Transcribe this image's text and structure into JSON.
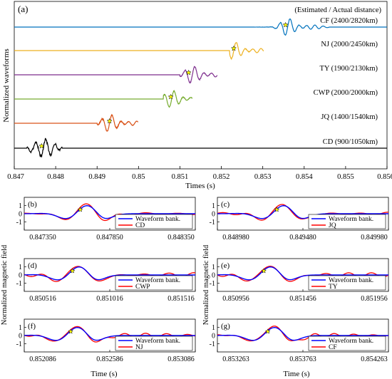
{
  "figure": {
    "panel_a": {
      "label": "(a)",
      "xlabel": "Times (s)",
      "ylabel": "Normalized waveforms",
      "legend_header": "(Estimated / Actual distance)",
      "xticks": [
        "0.847",
        "0.848",
        "0.849",
        "0.85",
        "0.851",
        "0.852",
        "0.853",
        "0.854",
        "0.855",
        "0.856"
      ]
    },
    "small_panels_ylabel": "Normalized magnetic field",
    "small_panels_xlabel": "Time (s)",
    "legend_waveform_bank": "Waveform bank.",
    "colors": {
      "waveform_bank": "#0000ff",
      "observed": "#ff0000",
      "axes": "#000000",
      "star_fill": "#ffff00"
    }
  },
  "chart_data": [
    {
      "type": "line",
      "panel": "(a)",
      "xlim": [
        0.847,
        0.856
      ],
      "xlabel": "Times (s)",
      "ylabel": "Normalized waveforms",
      "grid": false,
      "series": [
        {
          "name": "CF (2400/2820km)",
          "station": "CF",
          "color": "#0072bd",
          "offset": 5,
          "t_arrival": 0.8536,
          "t_start": 0.8524,
          "t_end": 0.8546,
          "t_star": 0.85355
        },
        {
          "name": "NJ (2000/2450km)",
          "station": "NJ",
          "color": "#edb120",
          "offset": 4,
          "t_arrival": 0.8523,
          "t_start": 0.8522,
          "t_end": 0.85302,
          "t_star": 0.8523
        },
        {
          "name": "TY (1900/2130km)",
          "station": "TY",
          "color": "#7e2f8e",
          "offset": 3,
          "t_arrival": 0.8513,
          "t_start": 0.851,
          "t_end": 0.8519,
          "t_star": 0.85121
        },
        {
          "name": "CWP (2000/2000km)",
          "station": "CWP",
          "color": "#77ac30",
          "offset": 2,
          "t_arrival": 0.8508,
          "t_start": 0.8506,
          "t_end": 0.8513,
          "t_star": 0.85078
        },
        {
          "name": "JQ (1400/1540km)",
          "station": "JQ",
          "color": "#d95319",
          "offset": 1,
          "t_arrival": 0.8493,
          "t_start": 0.849,
          "t_end": 0.84999,
          "t_star": 0.8493
        },
        {
          "name": "CD (900/1050km)",
          "station": "CD",
          "color": "#000000",
          "offset": 0,
          "t_arrival": 0.8477,
          "t_start": 0.8473,
          "t_end": 0.84815,
          "t_star": 0.84766
        }
      ]
    },
    {
      "type": "line",
      "panel": "(b)",
      "station": "CD",
      "xticks": [
        "0.847350",
        "0.847850",
        "0.848350"
      ],
      "xlim": [
        0.84735,
        0.84835
      ],
      "yticks": [
        "1",
        "0",
        "-1"
      ],
      "ylim": [
        -2,
        2
      ],
      "t_event": 0.84769,
      "series": [
        {
          "name": "Waveform bank."
        },
        {
          "name": "CD"
        }
      ]
    },
    {
      "type": "line",
      "panel": "(c)",
      "station": "JQ",
      "xticks": [
        "0.848980",
        "0.849480",
        "0.849980"
      ],
      "xlim": [
        0.84898,
        0.84998
      ],
      "yticks": [
        "1",
        "0",
        "-1"
      ],
      "ylim": [
        -2,
        2
      ],
      "t_event": 0.84934,
      "series": [
        {
          "name": "Waveform bank."
        },
        {
          "name": "JQ"
        }
      ]
    },
    {
      "type": "line",
      "panel": "(d)",
      "station": "CWP",
      "xticks": [
        "0.850516",
        "0.851016",
        "0.851516"
      ],
      "xlim": [
        0.850516,
        0.851516
      ],
      "yticks": [
        "1",
        "0",
        "-1"
      ],
      "ylim": [
        -2,
        2
      ],
      "t_event": 0.85081,
      "series": [
        {
          "name": "Waveform bank."
        },
        {
          "name": "CWP"
        }
      ]
    },
    {
      "type": "line",
      "panel": "(e)",
      "station": "TY",
      "xticks": [
        "0.850956",
        "0.851456",
        "0.851956"
      ],
      "xlim": [
        0.850956,
        0.851956
      ],
      "yticks": [
        "1",
        "0",
        "-1"
      ],
      "ylim": [
        -2,
        2
      ],
      "t_event": 0.85124,
      "series": [
        {
          "name": "Waveform bank."
        },
        {
          "name": "TY"
        }
      ]
    },
    {
      "type": "line",
      "panel": "(f)",
      "station": "NJ",
      "xticks": [
        "0.852086",
        "0.852586",
        "0.853086"
      ],
      "xlim": [
        0.852086,
        0.853086
      ],
      "yticks": [
        "1",
        "0",
        "-1"
      ],
      "ylim": [
        -2,
        2
      ],
      "t_event": 0.85237,
      "series": [
        {
          "name": "Waveform bank."
        },
        {
          "name": "NJ"
        }
      ]
    },
    {
      "type": "line",
      "panel": "(g)",
      "station": "CF",
      "xticks": [
        "0.853263",
        "0.853763",
        "0.854263"
      ],
      "xlim": [
        0.853263,
        0.854263
      ],
      "yticks": [
        "1",
        "0",
        "-1"
      ],
      "ylim": [
        -2,
        2
      ],
      "t_event": 0.85357,
      "series": [
        {
          "name": "Waveform bank."
        },
        {
          "name": "CF"
        }
      ]
    }
  ]
}
